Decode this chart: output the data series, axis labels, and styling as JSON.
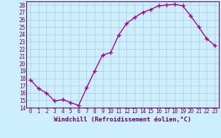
{
  "x": [
    0,
    1,
    2,
    3,
    4,
    5,
    6,
    7,
    8,
    9,
    10,
    11,
    12,
    13,
    14,
    15,
    16,
    17,
    18,
    19,
    20,
    21,
    22,
    23
  ],
  "y": [
    17.8,
    16.6,
    16.0,
    14.9,
    15.1,
    14.7,
    14.3,
    16.7,
    19.0,
    21.2,
    21.5,
    23.9,
    25.5,
    26.3,
    27.0,
    27.4,
    27.9,
    28.0,
    28.1,
    27.9,
    26.5,
    25.0,
    23.4,
    22.5
  ],
  "line_color": "#990099",
  "marker": "+",
  "marker_size": 4,
  "marker_lw": 1.0,
  "bg_color": "#cceeff",
  "grid_color": "#aacccc",
  "xlabel": "Windchill (Refroidissement éolien,°C)",
  "ylabel": "",
  "xlim": [
    -0.5,
    23.5
  ],
  "ylim": [
    14,
    28.5
  ],
  "yticks": [
    14,
    15,
    16,
    17,
    18,
    19,
    20,
    21,
    22,
    23,
    24,
    25,
    26,
    27,
    28
  ],
  "xticks": [
    0,
    1,
    2,
    3,
    4,
    5,
    6,
    7,
    8,
    9,
    10,
    11,
    12,
    13,
    14,
    15,
    16,
    17,
    18,
    19,
    20,
    21,
    22,
    23
  ],
  "xtick_labels": [
    "0",
    "1",
    "2",
    "3",
    "4",
    "5",
    "6",
    "7",
    "8",
    "9",
    "10",
    "11",
    "12",
    "13",
    "14",
    "15",
    "16",
    "17",
    "18",
    "19",
    "20",
    "21",
    "22",
    "23"
  ],
  "ytick_labels": [
    "14",
    "15",
    "16",
    "17",
    "18",
    "19",
    "20",
    "21",
    "22",
    "23",
    "24",
    "25",
    "26",
    "27",
    "28"
  ],
  "tick_color": "#660066",
  "label_color": "#660066",
  "spine_color": "#660066",
  "xlabel_fontsize": 6.5,
  "tick_fontsize": 5.5,
  "line_width": 1.0
}
